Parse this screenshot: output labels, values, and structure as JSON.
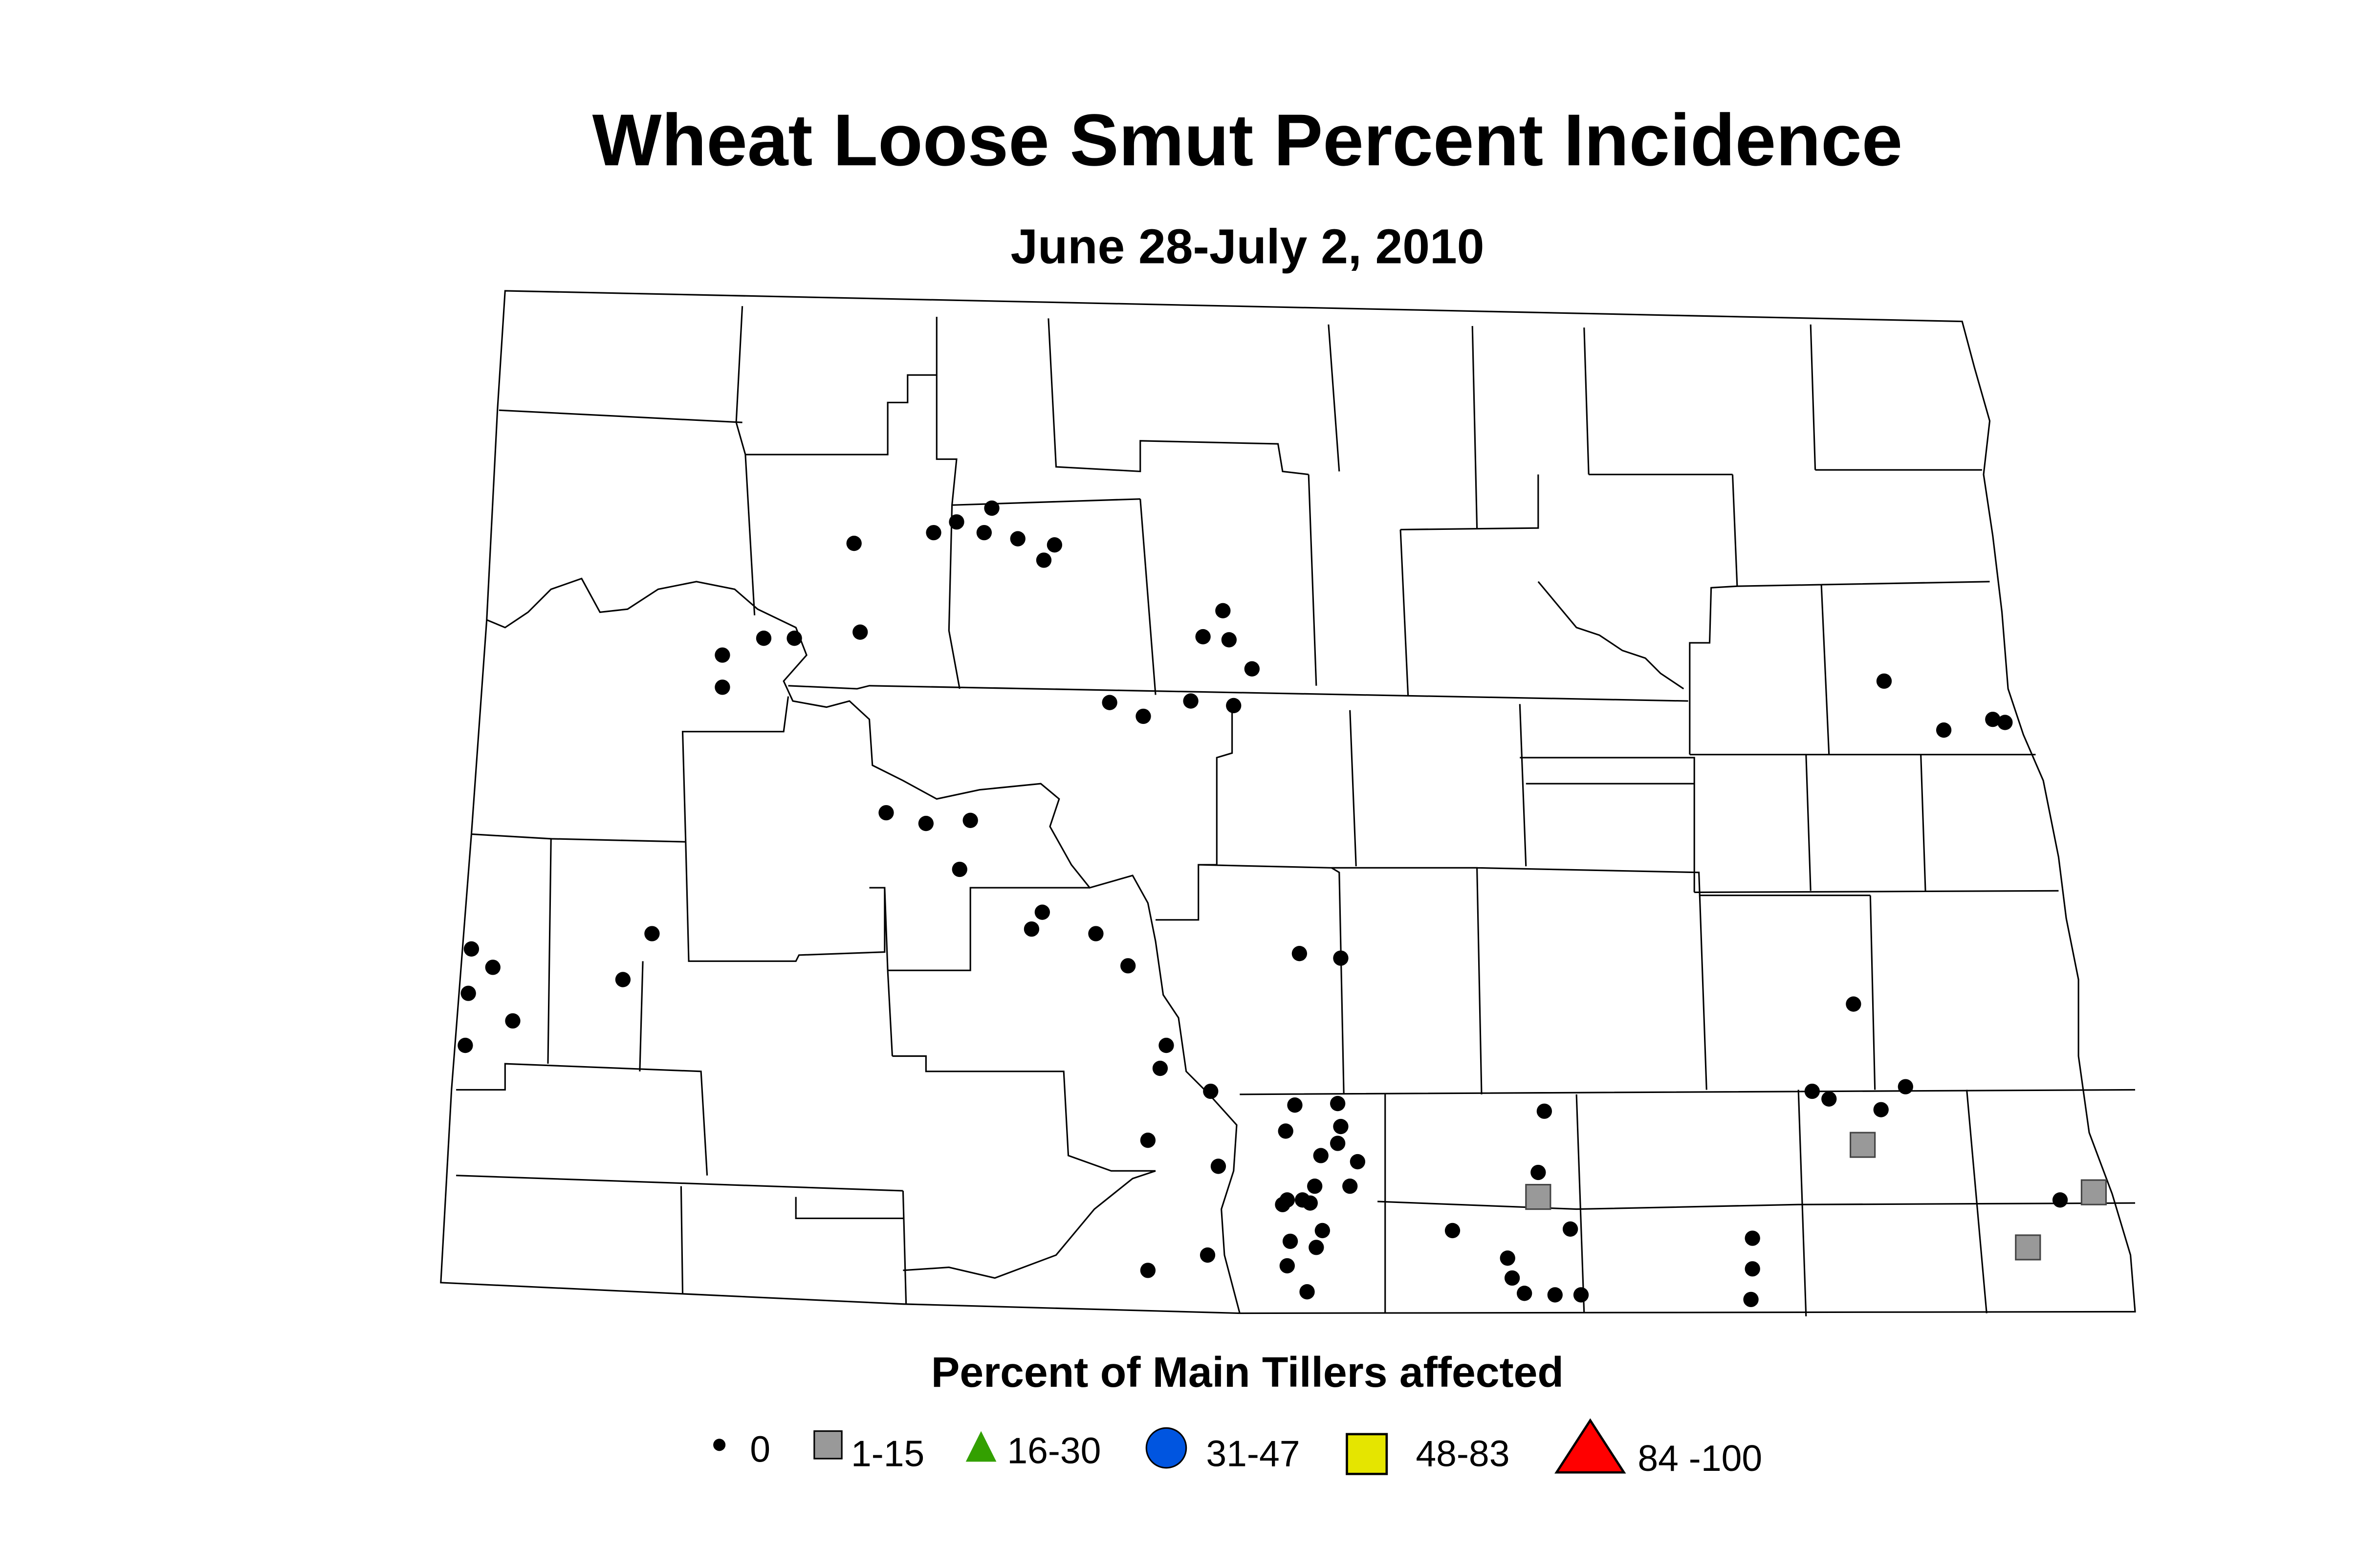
{
  "title": "Wheat Loose Smut Percent Incidence",
  "subtitle": "June 28-July 2, 2010",
  "legend": {
    "title": "Percent of Main Tillers affected",
    "items": [
      {
        "label": "0",
        "shape": "circle",
        "color": "#000000"
      },
      {
        "label": "1-15",
        "shape": "square",
        "color": "#999999"
      },
      {
        "label": "16-30",
        "shape": "triangle",
        "color": "#33a000"
      },
      {
        "label": "31-47",
        "shape": "circle",
        "color": "#0055e0"
      },
      {
        "label": "48-83",
        "shape": "square",
        "color": "#e5e500"
      },
      {
        "label": "84 -100",
        "shape": "triangle",
        "color": "#ff0000"
      }
    ]
  }
}
